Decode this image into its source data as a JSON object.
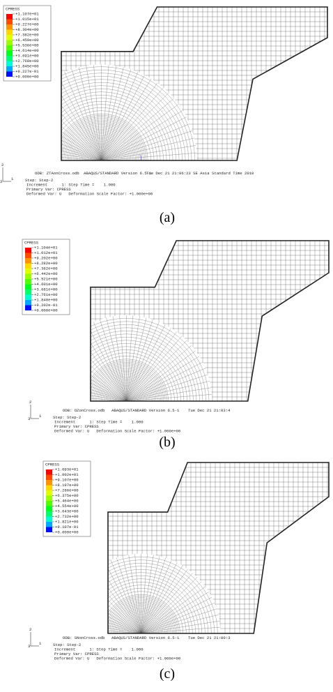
{
  "panels": [
    {
      "legend": {
        "title": "CPRESS",
        "values": [
          "+1.107e+01",
          "+1.015e+01",
          "+9.227e+00",
          "+8.304e+00",
          "+7.382e+00",
          "+6.459e+00",
          "+5.536e+00",
          "+4.614e+00",
          "+3.691e+00",
          "+2.768e+00",
          "+1.845e+00",
          "+9.227e-01",
          "+0.000e+00"
        ]
      },
      "triad": {
        "vertical": "2",
        "horizontal": "1",
        "origin": "3"
      },
      "info": {
        "odb": "ODB: ZTAonCross.odb",
        "version": "ABAQUS/STANDARD Version 6.5-1",
        "time": "Tue Dec 21 21:06:23 SE Asia Standard Time 2010",
        "step": "Step: Step-2",
        "increment": "Increment      1: Step Time =    1.000",
        "primary": "Primary Var: CPRESS",
        "deformed": "Deformed Var: U   Deformation Scale Factor: +1.000e+00"
      },
      "caption": "(a)"
    },
    {
      "legend": {
        "title": "CPRESS",
        "values": [
          "+1.104e+01",
          "+1.012e+01",
          "+9.202e+00",
          "+8.282e+00",
          "+7.362e+00",
          "+6.442e+00",
          "+5.521e+00",
          "+4.601e+00",
          "+3.681e+00",
          "+2.761e+00",
          "+1.840e+00",
          "+9.202e-01",
          "+0.000e+00"
        ]
      },
      "triad": {
        "vertical": "2",
        "horizontal": "1",
        "origin": "3"
      },
      "info": {
        "odb": "ODB: OZonCross.odb",
        "version": "ABAQUS/STANDARD Version 6.5-1",
        "time": "Tue Dec 21 21:03:4",
        "step": "Step: Step-2",
        "increment": "Increment      1: Step Time =    1.000",
        "primary": "Primary Var: CPRESS",
        "deformed": "Deformed Var: U   Deformation Scale Factor: +1.000e+00"
      },
      "caption": "(b)"
    },
    {
      "legend": {
        "title": "CPRESS",
        "values": [
          "+1.093e+01",
          "+1.002e+01",
          "+9.107e+00",
          "+8.197e+00",
          "+7.286e+00",
          "+6.375e+00",
          "+5.464e+00",
          "+4.554e+00",
          "+3.643e+00",
          "+2.732e+00",
          "+1.821e+00",
          "+9.107e-01",
          "+0.000e+00"
        ]
      },
      "triad": {
        "vertical": "2",
        "horizontal": "1",
        "origin": "3"
      },
      "info": {
        "odb": "ODB: SNonCross.odb",
        "version": "ABAQUS/STANDARD Version 6.5-1",
        "time": "Tue Dec 21 21:00:3",
        "step": "Step: Step-2",
        "increment": "Increment      1: Step Time =    1.000",
        "primary": "Primary Var: CPRESS",
        "deformed": "Deformed Var: U   Deformation Scale Factor: +1.000e+00"
      },
      "caption": "(c)"
    }
  ]
}
